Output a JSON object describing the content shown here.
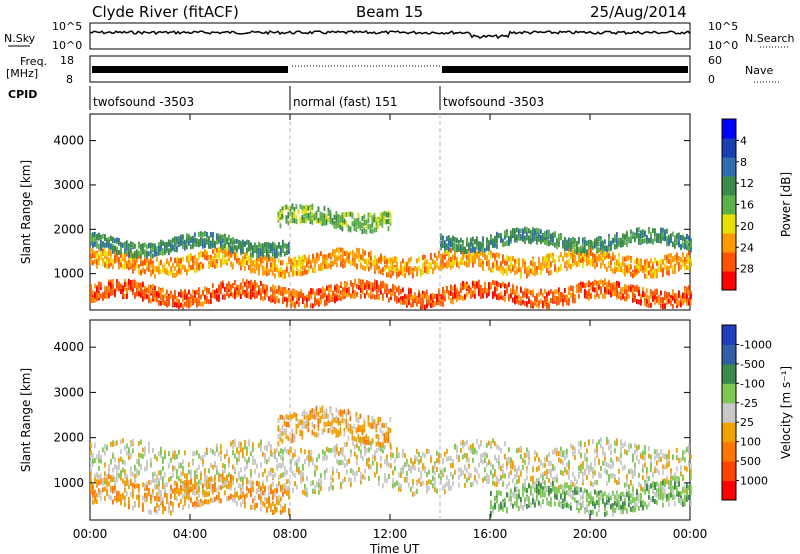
{
  "header": {
    "station": "Clyde River (fitACF)",
    "beam": "Beam 15",
    "date": "25/Aug/2014"
  },
  "panels": {
    "nsky": {
      "label": "N.Sky",
      "tick_top": "10^5",
      "tick_bot": "10^0",
      "right_label": "N.Search",
      "rtick_top": "10^5",
      "rtick_bot": "10^0"
    },
    "freq": {
      "label_line1": "Freq.",
      "label_line2": "[MHz]",
      "tick_top": "18",
      "tick_bot": "8",
      "right_label": "Nave",
      "rtick_top": "60",
      "rtick_bot": "0"
    },
    "cpid": {
      "label": "CPID",
      "segments": [
        {
          "name": "twofsound -3503",
          "start_h": 0,
          "end_h": 8
        },
        {
          "name": "normal (fast) 151",
          "start_h": 8,
          "end_h": 14
        },
        {
          "name": "twofsound -3503",
          "start_h": 14,
          "end_h": 24
        }
      ]
    }
  },
  "chart_data": [
    {
      "type": "heatmap",
      "title": "",
      "xlabel": "Time UT",
      "ylabel": "Slant Range [km]",
      "xlim": [
        0,
        24
      ],
      "ylim": [
        180,
        4600
      ],
      "x_ticks": [
        "00:00",
        "04:00",
        "08:00",
        "12:00",
        "16:00",
        "20:00",
        "00:00"
      ],
      "y_ticks": [
        1000,
        2000,
        3000,
        4000
      ],
      "colorbar": {
        "label": "Power [dB]",
        "ticks": [
          "4",
          "8",
          "12",
          "16",
          "20",
          "24",
          "28"
        ],
        "colors": [
          "#0000ff",
          "#1a3fb0",
          "#2f6eb0",
          "#3a8a4a",
          "#5cb04a",
          "#e8e000",
          "#ff9900",
          "#ff5500",
          "#ff0000"
        ]
      },
      "bands": [
        {
          "start_h": 0.0,
          "end_h": 24.0,
          "center_km": 600,
          "width_km": 180,
          "power_db": 26
        },
        {
          "start_h": 0.0,
          "end_h": 24.0,
          "center_km": 1300,
          "width_km": 200,
          "power_db": 22
        },
        {
          "start_h": 0.0,
          "end_h": 8.0,
          "center_km": 1700,
          "width_km": 150,
          "power_db": 10
        },
        {
          "start_h": 7.5,
          "end_h": 12.0,
          "center_km": 2300,
          "width_km": 200,
          "power_db": 14
        },
        {
          "start_h": 14.0,
          "end_h": 24.0,
          "center_km": 1800,
          "width_km": 150,
          "power_db": 12
        }
      ]
    },
    {
      "type": "heatmap",
      "title": "",
      "xlabel": "Time UT",
      "ylabel": "Slant Range [km]",
      "xlim": [
        0,
        24
      ],
      "ylim": [
        180,
        4600
      ],
      "x_ticks": [
        "00:00",
        "04:00",
        "08:00",
        "12:00",
        "16:00",
        "20:00",
        "00:00"
      ],
      "y_ticks": [
        1000,
        2000,
        3000,
        4000
      ],
      "colorbar": {
        "label": "Velocity [m s⁻¹]",
        "ticks": [
          "1000",
          "500",
          "100",
          "25",
          "-25",
          "-100",
          "-500",
          "-1000"
        ],
        "colors": [
          "#1f3fc0",
          "#2e5fa8",
          "#3a8a4a",
          "#7cc850",
          "#c8c8c8",
          "#f0a000",
          "#ff7700",
          "#ff4400",
          "#ff0000"
        ]
      },
      "bands": [
        {
          "start_h": 0.0,
          "end_h": 24.0,
          "center_km": 1400,
          "width_km": 500,
          "velocity": 0
        },
        {
          "start_h": 0.0,
          "end_h": 8.0,
          "center_km": 800,
          "width_km": 300,
          "velocity": -150
        },
        {
          "start_h": 7.5,
          "end_h": 12.0,
          "center_km": 2300,
          "width_km": 300,
          "velocity": -150
        },
        {
          "start_h": 16.0,
          "end_h": 24.0,
          "center_km": 700,
          "width_km": 250,
          "velocity": 120
        }
      ]
    }
  ]
}
